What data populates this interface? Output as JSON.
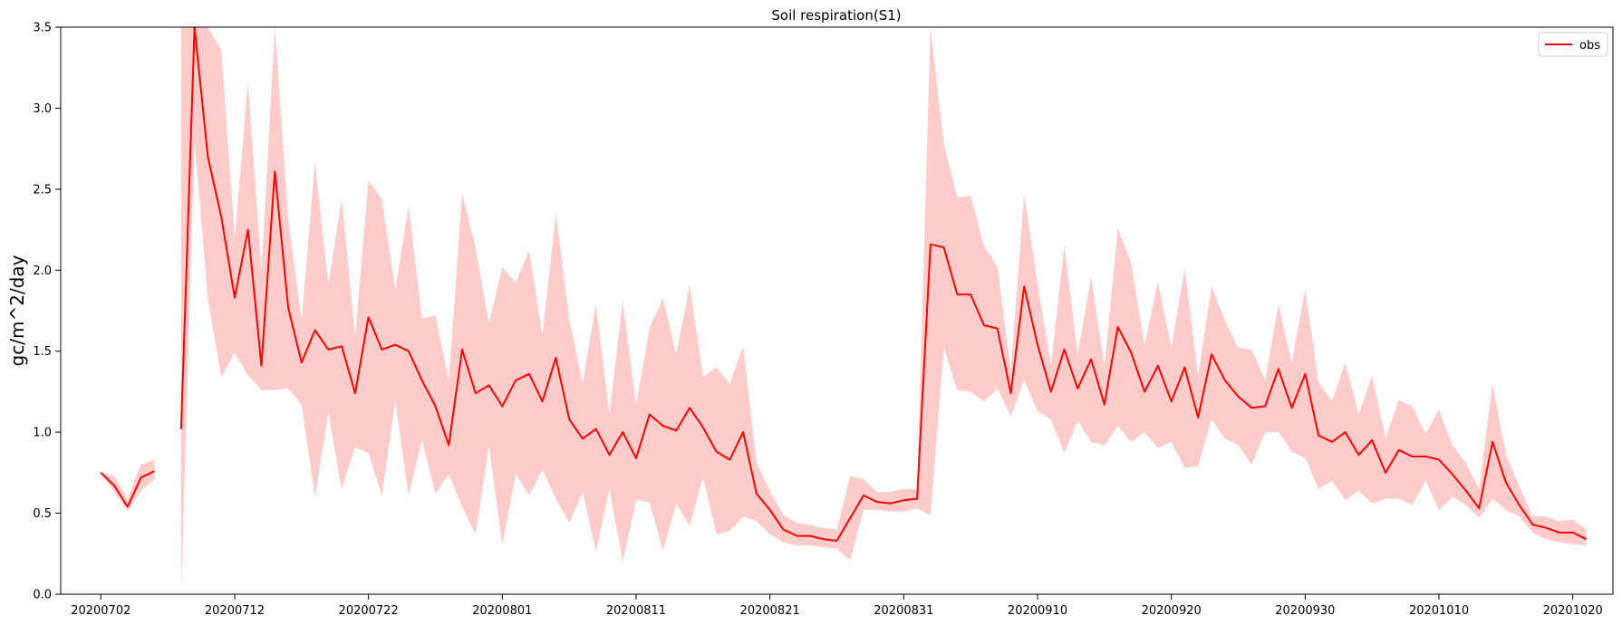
{
  "chart_data": {
    "type": "line",
    "title": "Soil respiration(S1)",
    "xlabel": "",
    "ylabel": "gc/m^2/day",
    "ylim": [
      0.0,
      3.5
    ],
    "x_start_date": "20200629",
    "x_end_date": "20201023",
    "xticks": [
      "20200702",
      "20200712",
      "20200722",
      "20200801",
      "20200811",
      "20200821",
      "20200831",
      "20200910",
      "20200920",
      "20200930",
      "20201010",
      "20201020"
    ],
    "yticks": [
      0.0,
      0.5,
      1.0,
      1.5,
      2.0,
      2.5,
      3.0,
      3.5
    ],
    "grid": false,
    "legend_position": "top-right",
    "line_color": "#ff0000",
    "band_color": "#ffcccc",
    "series": [
      {
        "name": "obs",
        "x": [
          "20200702",
          "20200703",
          "20200704",
          "20200705",
          "20200706",
          "20200707",
          "20200708",
          "20200709",
          "20200710",
          "20200711",
          "20200712",
          "20200713",
          "20200714",
          "20200715",
          "20200716",
          "20200717",
          "20200718",
          "20200719",
          "20200720",
          "20200721",
          "20200722",
          "20200723",
          "20200724",
          "20200725",
          "20200726",
          "20200727",
          "20200728",
          "20200729",
          "20200730",
          "20200731",
          "20200801",
          "20200802",
          "20200803",
          "20200804",
          "20200805",
          "20200806",
          "20200807",
          "20200808",
          "20200809",
          "20200810",
          "20200811",
          "20200812",
          "20200813",
          "20200814",
          "20200815",
          "20200816",
          "20200817",
          "20200818",
          "20200819",
          "20200820",
          "20200821",
          "20200822",
          "20200823",
          "20200824",
          "20200825",
          "20200826",
          "20200827",
          "20200828",
          "20200829",
          "20200830",
          "20200831",
          "20200901",
          "20200902",
          "20200903",
          "20200904",
          "20200905",
          "20200906",
          "20200907",
          "20200908",
          "20200909",
          "20200910",
          "20200911",
          "20200912",
          "20200913",
          "20200914",
          "20200915",
          "20200916",
          "20200917",
          "20200918",
          "20200919",
          "20200920",
          "20200921",
          "20200922",
          "20200923",
          "20200924",
          "20200925",
          "20200926",
          "20200927",
          "20200928",
          "20200929",
          "20200930",
          "20201001",
          "20201002",
          "20201003",
          "20201004",
          "20201005",
          "20201006",
          "20201007",
          "20201008",
          "20201009",
          "20201010",
          "20201011",
          "20201012",
          "20201013",
          "20201014",
          "20201015",
          "20201016",
          "20201017",
          "20201018",
          "20201019",
          "20201020",
          "20201021"
        ],
        "values": [
          0.75,
          0.67,
          0.54,
          0.72,
          0.76,
          null,
          1.02,
          3.6,
          2.7,
          2.33,
          1.83,
          2.25,
          1.41,
          2.61,
          1.77,
          1.43,
          1.63,
          1.51,
          1.53,
          1.24,
          1.71,
          1.51,
          1.54,
          1.5,
          1.32,
          1.16,
          0.92,
          1.51,
          1.24,
          1.29,
          1.16,
          1.32,
          1.36,
          1.19,
          1.46,
          1.08,
          0.96,
          1.02,
          0.86,
          1.0,
          0.84,
          1.11,
          1.04,
          1.01,
          1.15,
          1.03,
          0.88,
          0.83,
          1.0,
          0.62,
          0.52,
          0.4,
          0.36,
          0.36,
          0.34,
          0.33,
          0.47,
          0.61,
          0.57,
          0.56,
          0.58,
          0.59,
          2.16,
          2.14,
          1.85,
          1.85,
          1.66,
          1.64,
          1.24,
          1.9,
          1.54,
          1.25,
          1.51,
          1.27,
          1.45,
          1.17,
          1.65,
          1.49,
          1.25,
          1.41,
          1.19,
          1.4,
          1.09,
          1.48,
          1.32,
          1.22,
          1.15,
          1.16,
          1.39,
          1.15,
          1.36,
          0.98,
          0.94,
          1.0,
          0.86,
          0.95,
          0.75,
          0.89,
          0.85,
          0.85,
          0.83,
          0.74,
          0.64,
          0.53,
          0.94,
          0.69,
          0.55,
          0.43,
          0.41,
          0.38,
          0.38,
          0.34
        ],
        "upper": [
          0.75,
          0.73,
          0.59,
          0.8,
          0.83,
          null,
          3.5,
          3.5,
          3.5,
          3.36,
          2.2,
          3.16,
          2.0,
          3.5,
          2.32,
          1.69,
          2.67,
          1.91,
          2.44,
          1.59,
          2.55,
          2.44,
          1.88,
          2.4,
          1.7,
          1.72,
          1.32,
          2.48,
          2.14,
          1.67,
          2.02,
          1.92,
          2.12,
          1.6,
          2.35,
          1.7,
          1.3,
          1.79,
          1.11,
          1.81,
          1.17,
          1.64,
          1.83,
          1.48,
          1.91,
          1.34,
          1.4,
          1.3,
          1.53,
          0.81,
          0.64,
          0.49,
          0.44,
          0.43,
          0.41,
          0.4,
          0.73,
          0.71,
          0.63,
          0.63,
          0.65,
          0.65,
          3.5,
          2.78,
          2.45,
          2.46,
          2.15,
          2.02,
          1.38,
          2.47,
          1.92,
          1.41,
          2.15,
          1.48,
          1.96,
          1.41,
          2.26,
          2.04,
          1.54,
          1.93,
          1.52,
          2.01,
          1.35,
          1.9,
          1.69,
          1.52,
          1.51,
          1.32,
          1.79,
          1.43,
          1.88,
          1.31,
          1.19,
          1.43,
          1.11,
          1.35,
          0.96,
          1.2,
          1.16,
          0.99,
          1.14,
          0.92,
          0.81,
          0.65,
          1.3,
          0.86,
          0.67,
          0.48,
          0.48,
          0.45,
          0.46,
          0.4
        ],
        "lower": [
          0.75,
          0.63,
          0.51,
          0.64,
          0.71,
          null,
          0.0,
          2.8,
          1.82,
          1.34,
          1.49,
          1.35,
          1.26,
          1.26,
          1.27,
          1.17,
          0.6,
          1.12,
          0.65,
          0.91,
          0.87,
          0.61,
          1.19,
          0.61,
          0.95,
          0.62,
          0.74,
          0.54,
          0.37,
          0.92,
          0.3,
          0.74,
          0.61,
          0.77,
          0.59,
          0.44,
          0.63,
          0.26,
          0.65,
          0.2,
          0.58,
          0.57,
          0.27,
          0.56,
          0.42,
          0.72,
          0.37,
          0.39,
          0.48,
          0.45,
          0.37,
          0.32,
          0.3,
          0.3,
          0.29,
          0.28,
          0.21,
          0.52,
          0.52,
          0.51,
          0.51,
          0.53,
          0.49,
          1.52,
          1.26,
          1.25,
          1.19,
          1.27,
          1.1,
          1.32,
          1.13,
          1.08,
          0.87,
          1.07,
          0.94,
          0.92,
          1.04,
          0.94,
          1.0,
          0.9,
          0.94,
          0.78,
          0.79,
          1.08,
          0.96,
          0.92,
          0.8,
          1.0,
          1.0,
          0.88,
          0.84,
          0.65,
          0.7,
          0.58,
          0.64,
          0.56,
          0.59,
          0.59,
          0.55,
          0.7,
          0.52,
          0.6,
          0.55,
          0.47,
          0.59,
          0.52,
          0.48,
          0.38,
          0.34,
          0.32,
          0.31,
          0.3
        ]
      }
    ]
  }
}
